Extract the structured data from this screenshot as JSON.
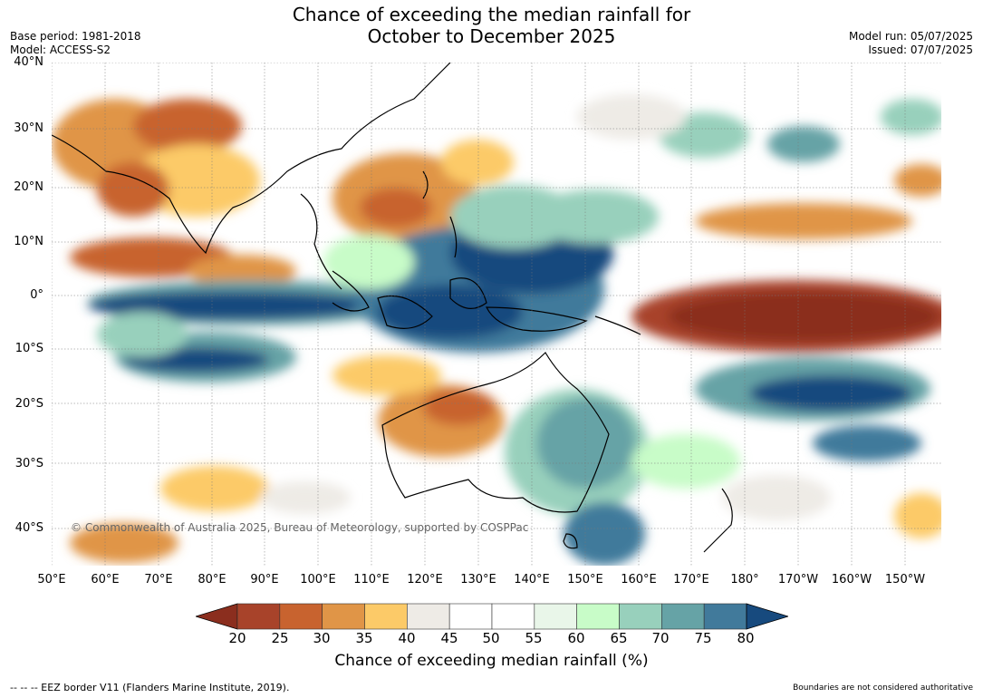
{
  "title_line1": "Chance of exceeding the median rainfall for",
  "title_line2": "October to December 2025",
  "base_period": "Base period: 1981-2018",
  "model": "Model: ACCESS-S2",
  "model_run": "Model run: 05/07/2025",
  "issued": "Issued: 07/07/2025",
  "copyright": "© Commonwealth of Australia 2025, Bureau of Meteorology, supported by COSPPac",
  "lat_labels": [
    "40°N",
    "30°N",
    "20°N",
    "10°N",
    "0°",
    "10°S",
    "20°S",
    "30°S",
    "40°S"
  ],
  "lon_labels": [
    "50°E",
    "60°E",
    "70°E",
    "80°E",
    "90°E",
    "100°E",
    "110°E",
    "120°E",
    "130°E",
    "140°E",
    "150°E",
    "160°E",
    "170°E",
    "180°",
    "170°W",
    "160°W",
    "150°W"
  ],
  "colorbar": {
    "title": "Chance of exceeding median rainfall (%)",
    "ticks": [
      "20",
      "25",
      "30",
      "35",
      "40",
      "45",
      "50",
      "55",
      "60",
      "65",
      "70",
      "75",
      "80"
    ],
    "under_color": "#8b2e1e",
    "over_color": "#174a7e",
    "colors": [
      "#a8432a",
      "#c8632f",
      "#e09547",
      "#fcca68",
      "#eeebe6",
      "#ffffff",
      "#ffffff",
      "#e9f6e9",
      "#c8fcc8",
      "#98d0bc",
      "#66a3a6",
      "#417a9b"
    ]
  },
  "footer_left": "--  --  -- EEZ border V11 (Flanders Marine Institute, 2019).",
  "footer_right": "Boundaries are not considered authoritative"
}
